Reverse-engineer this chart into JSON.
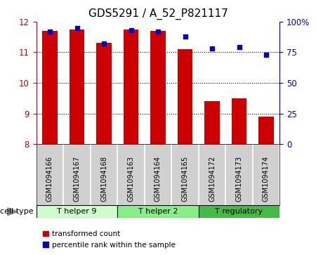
{
  "title": "GDS5291 / A_52_P821117",
  "samples": [
    "GSM1094166",
    "GSM1094167",
    "GSM1094168",
    "GSM1094163",
    "GSM1094164",
    "GSM1094165",
    "GSM1094172",
    "GSM1094173",
    "GSM1094174"
  ],
  "transformed_count": [
    11.7,
    11.75,
    11.3,
    11.75,
    11.7,
    11.1,
    9.4,
    9.5,
    8.9
  ],
  "percentile_rank": [
    92,
    95,
    82,
    93,
    92,
    88,
    78,
    79,
    73
  ],
  "cell_types": [
    {
      "label": "T helper 9",
      "start": 0,
      "end": 3,
      "color": "#ccffcc"
    },
    {
      "label": "T helper 2",
      "start": 3,
      "end": 6,
      "color": "#88ee88"
    },
    {
      "label": "T regulatory",
      "start": 6,
      "end": 9,
      "color": "#44bb44"
    }
  ],
  "ylim_left": [
    8,
    12
  ],
  "ylim_right": [
    0,
    100
  ],
  "yticks_left": [
    8,
    9,
    10,
    11,
    12
  ],
  "yticks_right": [
    0,
    25,
    50,
    75,
    100
  ],
  "ytick_labels_right": [
    "0",
    "25",
    "50",
    "75",
    "100%"
  ],
  "bar_color": "#cc0000",
  "dot_color": "#0000cc",
  "bar_width": 0.55,
  "legend_items": [
    {
      "label": "transformed count",
      "color": "#cc0000"
    },
    {
      "label": "percentile rank within the sample",
      "color": "#0000cc"
    }
  ],
  "cell_type_label": "cell type",
  "background_color": "#ffffff",
  "title_fontsize": 11,
  "tick_fontsize": 8.5,
  "sample_bg_color": "#d0d0d0",
  "sample_border_color": "#ffffff",
  "left_spine_color": "#cc0000",
  "right_spine_color": "#0000cc"
}
